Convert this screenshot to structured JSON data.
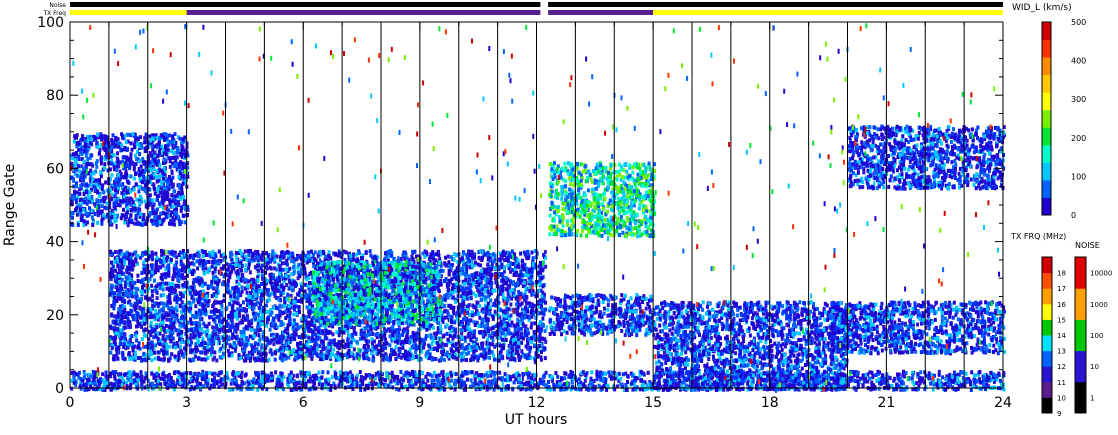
{
  "chart_data": {
    "type": "heatmap",
    "xlabel": "UT hours",
    "ylabel": "Range Gate",
    "xlim": [
      0,
      24
    ],
    "ylim": [
      0,
      100
    ],
    "xticks": [
      0,
      3,
      6,
      9,
      12,
      15,
      18,
      21,
      24
    ],
    "yticks": [
      0,
      20,
      40,
      60,
      80,
      100
    ],
    "scan_boundaries_ut": [
      1,
      2,
      3,
      4,
      5,
      6,
      7,
      8,
      9,
      10,
      11,
      12,
      13,
      14,
      15,
      16,
      17,
      18,
      19,
      20,
      21,
      22,
      23
    ],
    "status_bars": {
      "noise_label": "Noise",
      "txfreq_label": "TX Freq",
      "noise_color": "#000000",
      "txfreq_segments": [
        {
          "start": 0,
          "end": 3,
          "color": "#ffff00"
        },
        {
          "start": 3,
          "end": 12.1,
          "color": "#5a1e8c"
        },
        {
          "start": 12.3,
          "end": 15,
          "color": "#5a1e8c"
        },
        {
          "start": 15,
          "end": 24,
          "color": "#ffff00"
        }
      ],
      "gaps_ut": [
        [
          12.1,
          12.3
        ]
      ]
    },
    "echo_regions": [
      {
        "t0": 0,
        "t1": 3,
        "g0": 45,
        "g1": 70,
        "width": "low"
      },
      {
        "t0": 0,
        "t1": 24,
        "g0": 0,
        "g1": 5,
        "width": "low"
      },
      {
        "t0": 1,
        "t1": 12.2,
        "g0": 8,
        "g1": 38,
        "width": "low"
      },
      {
        "t0": 6.2,
        "t1": 9.5,
        "g0": 18,
        "g1": 35,
        "width": "medium"
      },
      {
        "t0": 12.3,
        "t1": 15,
        "g0": 42,
        "g1": 62,
        "width": "high"
      },
      {
        "t0": 12.3,
        "t1": 15,
        "g0": 15,
        "g1": 26,
        "width": "low"
      },
      {
        "t0": 15,
        "t1": 20,
        "g0": 0,
        "g1": 24,
        "width": "low"
      },
      {
        "t0": 19.5,
        "t1": 24,
        "g0": 10,
        "g1": 24,
        "width": "low"
      },
      {
        "t0": 20,
        "t1": 24,
        "g0": 55,
        "g1": 72,
        "width": "low"
      }
    ],
    "width_scale": {
      "title": "WID_L (km/s)",
      "ticks": [
        0,
        100,
        200,
        300,
        400,
        500
      ],
      "colors": [
        "#1e00d2",
        "#0064ff",
        "#00c8ff",
        "#00ffc8",
        "#00e632",
        "#78f000",
        "#ffff00",
        "#ffc800",
        "#ff8c00",
        "#ff3200",
        "#d20000"
      ]
    },
    "txfrq_scale": {
      "title": "TX FRQ (MHz)",
      "ticks": [
        9,
        10,
        11,
        12,
        13,
        14,
        15,
        16,
        17,
        18
      ],
      "colors": [
        "#000000",
        "#5a1e8c",
        "#2814d2",
        "#0064ff",
        "#00e0ff",
        "#00c800",
        "#ffff00",
        "#ffa000",
        "#ff5000",
        "#d20000"
      ]
    },
    "noise_scale": {
      "title": "NOISE",
      "ticks": [
        "1",
        "10",
        "100",
        "1000",
        "10000"
      ],
      "colors": [
        "#000000",
        "#2814d2",
        "#00c800",
        "#ffa000",
        "#e00000"
      ]
    }
  }
}
